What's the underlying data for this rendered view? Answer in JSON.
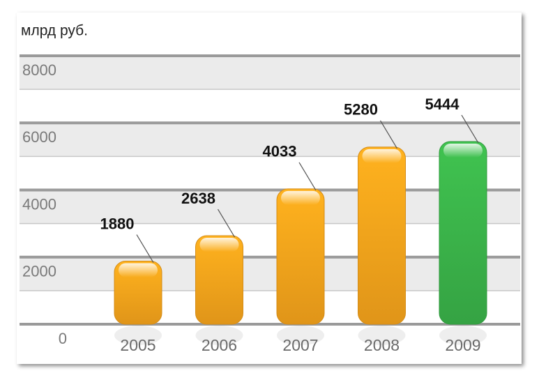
{
  "chart_data": {
    "type": "bar",
    "y_axis_label": "млрд руб.",
    "categories": [
      "2005",
      "2006",
      "2007",
      "2008",
      "2009"
    ],
    "values": [
      1880,
      2638,
      4033,
      5280,
      5444
    ],
    "colors": [
      "#f9a51c",
      "#f9a51c",
      "#f9a51c",
      "#f9a51c",
      "#3bb54a"
    ],
    "ylim": [
      0,
      8000
    ],
    "yticks": [
      0,
      2000,
      4000,
      6000,
      8000
    ],
    "grid": true
  }
}
